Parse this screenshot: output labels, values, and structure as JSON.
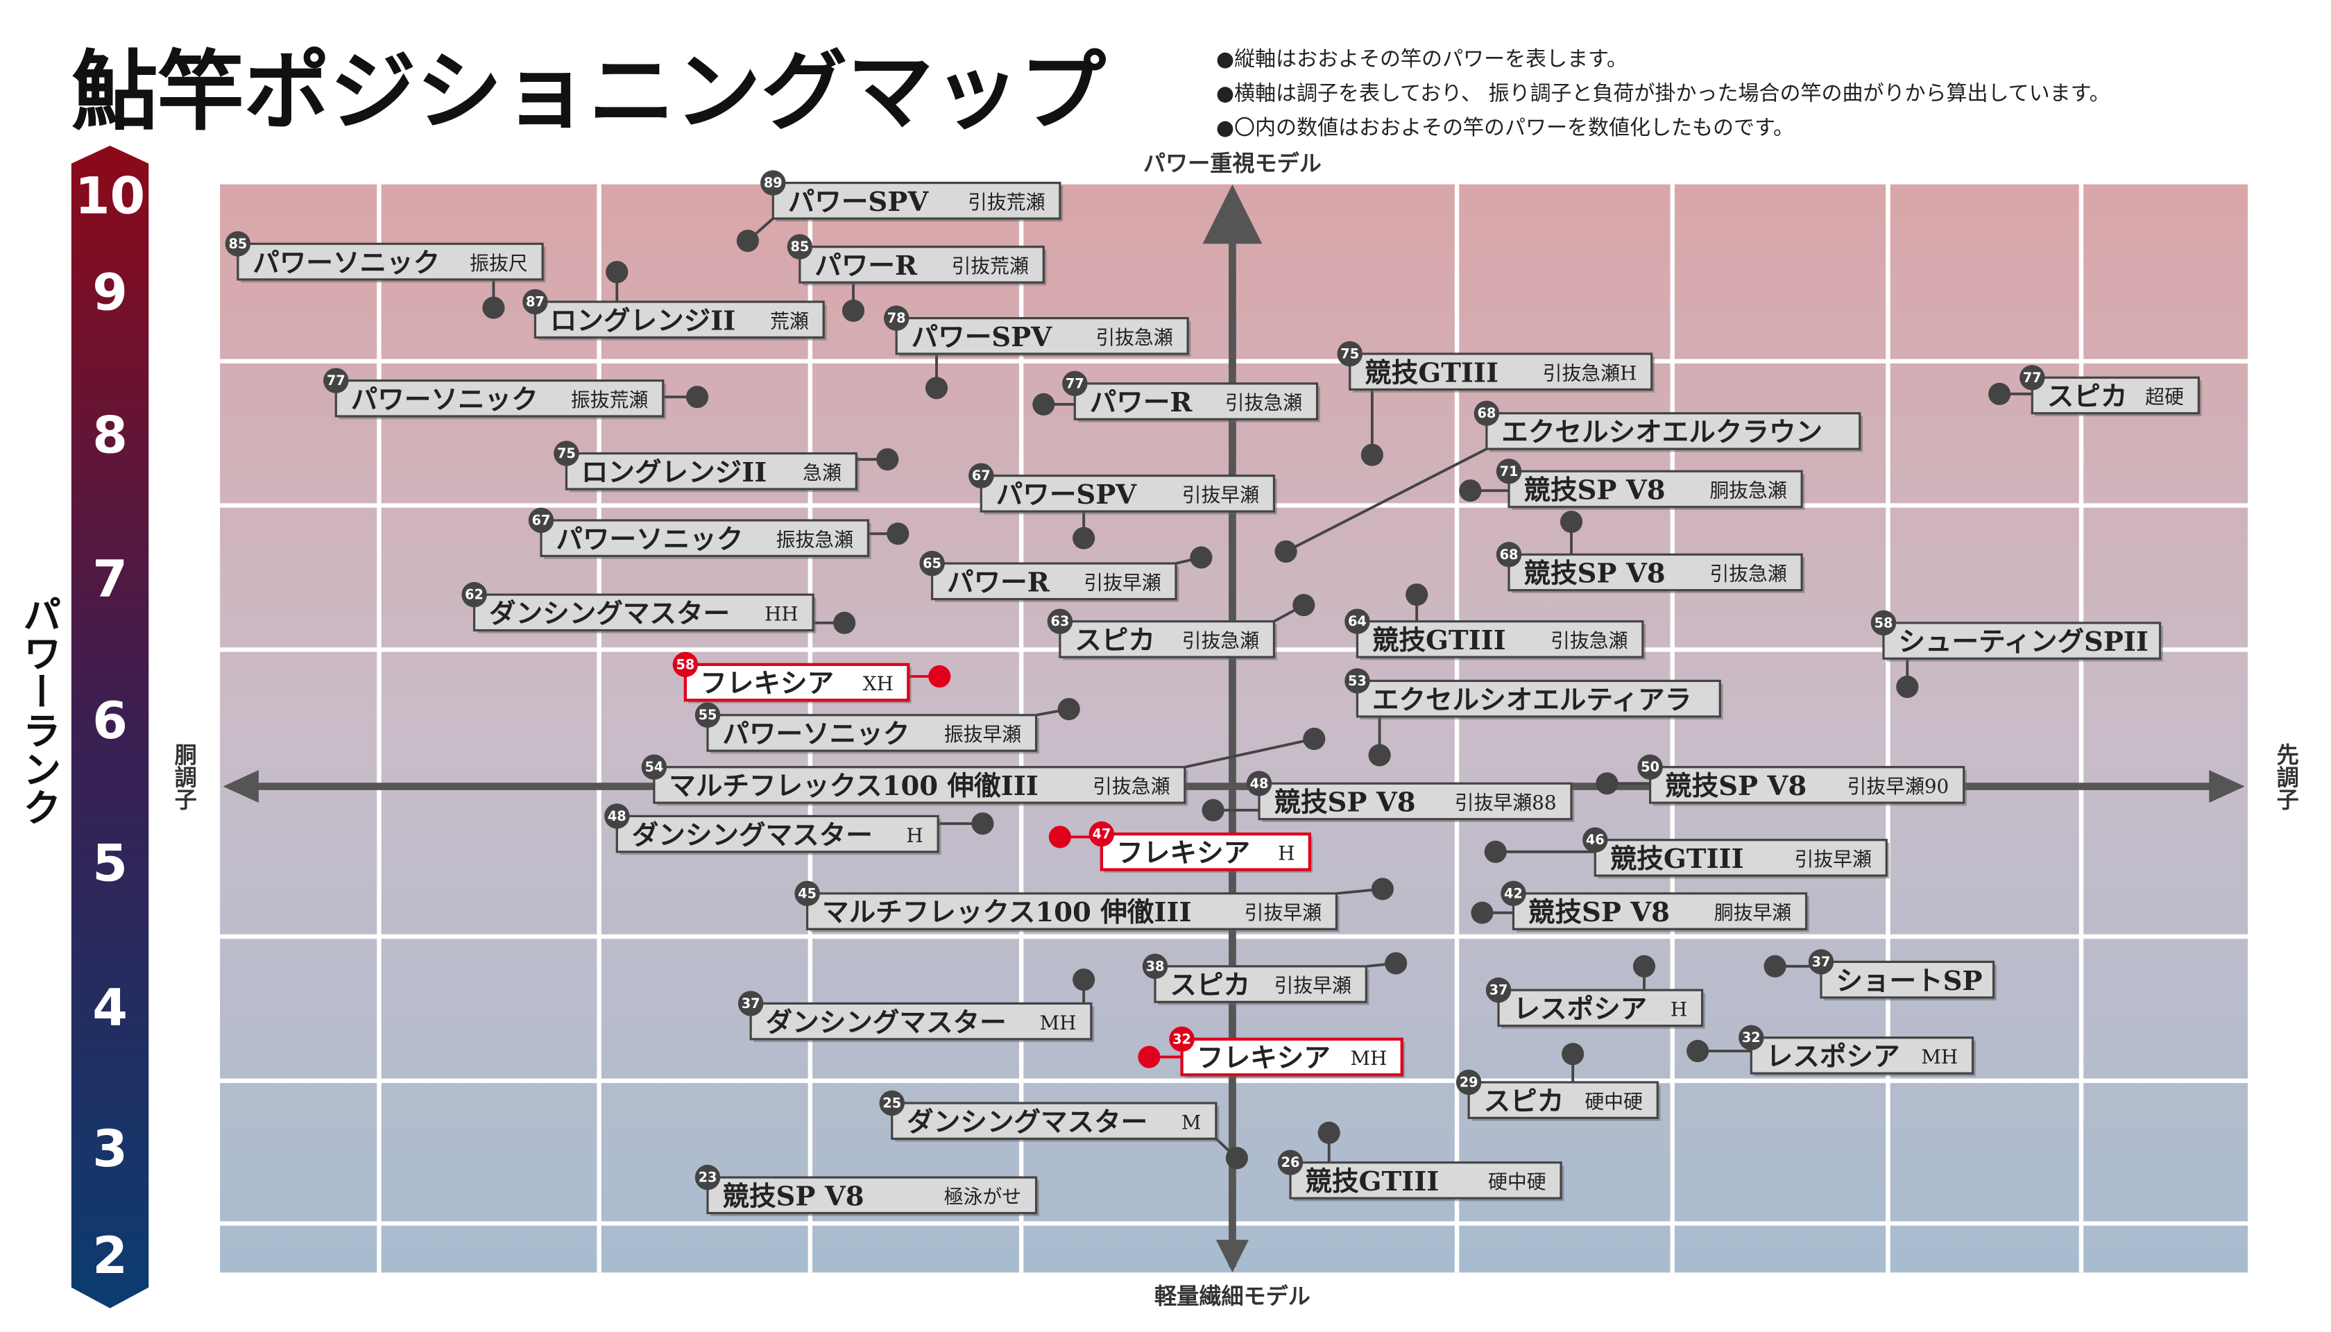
{
  "header": {
    "title": "鮎竿ポジショニングマップ",
    "notes": [
      "●縦軸はおおよその竿のパワーを表します。",
      "●横軸は調子を表しており、 振り調子と負荷が掛かった場合の竿の曲がりから算出しています。",
      "●〇内の数値はおおよその竿のパワーを数値化したものです。"
    ]
  },
  "axes": {
    "top": "パワー重視モデル",
    "bottom": "軽量繊細モデル",
    "left": "胴調子",
    "right": "先調子",
    "rank_title": "パワーランク"
  },
  "ranks": [
    "10",
    "9",
    "8",
    "7",
    "6",
    "5",
    "4",
    "3",
    "2"
  ],
  "items": [
    {
      "rank": 89,
      "name": "パワーSPV",
      "sub": "引抜荒瀬"
    },
    {
      "rank": 85,
      "name": "パワーソニック",
      "sub": "振抜尺"
    },
    {
      "rank": 85,
      "name": "パワーR",
      "sub": "引抜荒瀬"
    },
    {
      "rank": 87,
      "name": "ロングレンジII",
      "sub": "荒瀬"
    },
    {
      "rank": 78,
      "name": "パワーSPV",
      "sub": "引抜急瀬"
    },
    {
      "rank": 75,
      "name": "競技GTIII",
      "sub": "引抜急瀬H"
    },
    {
      "rank": 77,
      "name": "パワーソニック",
      "sub": "振抜荒瀬"
    },
    {
      "rank": 77,
      "name": "パワーR",
      "sub": "引抜急瀬"
    },
    {
      "rank": 77,
      "name": "スピカ",
      "sub": "超硬"
    },
    {
      "rank": 68,
      "name": "エクセルシオエルクラウン"
    },
    {
      "rank": 75,
      "name": "ロングレンジII",
      "sub": "急瀬"
    },
    {
      "rank": 71,
      "name": "競技SP V8",
      "sub": "胴抜急瀬"
    },
    {
      "rank": 67,
      "name": "パワーSPV",
      "sub": "引抜早瀬"
    },
    {
      "rank": 67,
      "name": "パワーソニック",
      "sub": "振抜急瀬"
    },
    {
      "rank": 68,
      "name": "競技SP V8",
      "sub": "引抜急瀬"
    },
    {
      "rank": 65,
      "name": "パワーR",
      "sub": "引抜早瀬"
    },
    {
      "rank": 62,
      "name": "ダンシングマスター",
      "sub": "HH"
    },
    {
      "rank": 63,
      "name": "スピカ",
      "sub": "引抜急瀬"
    },
    {
      "rank": 64,
      "name": "競技GTIII",
      "sub": "引抜急瀬"
    },
    {
      "rank": 58,
      "name": "シューティングSPII"
    },
    {
      "rank": 58,
      "name": "フレキシア",
      "sub": "XH"
    },
    {
      "rank": 53,
      "name": "エクセルシオエルティアラ"
    },
    {
      "rank": 55,
      "name": "パワーソニック",
      "sub": "振抜早瀬"
    },
    {
      "rank": 54,
      "name": "マルチフレックス100 伸徹III",
      "sub": "引抜急瀬"
    },
    {
      "rank": 48,
      "name": "競技SP V8",
      "sub": "引抜早瀬88"
    },
    {
      "rank": 50,
      "name": "競技SP V8",
      "sub": "引抜早瀬90"
    },
    {
      "rank": 48,
      "name": "ダンシングマスター",
      "sub": "H"
    },
    {
      "rank": 47,
      "name": "フレキシア",
      "sub": "H"
    },
    {
      "rank": 46,
      "name": "競技GTIII",
      "sub": "引抜早瀬"
    },
    {
      "rank": 45,
      "name": "マルチフレックス100 伸徹III",
      "sub": "引抜早瀬"
    },
    {
      "rank": 42,
      "name": "競技SP V8",
      "sub": "胴抜早瀬"
    },
    {
      "rank": 38,
      "name": "スピカ",
      "sub": "引抜早瀬"
    },
    {
      "rank": 37,
      "name": "ショートSP"
    },
    {
      "rank": 37,
      "name": "ダンシングマスター",
      "sub": "MH"
    },
    {
      "rank": 37,
      "name": "レスポシア",
      "sub": "H"
    },
    {
      "rank": 32,
      "name": "フレキシア",
      "sub": "MH"
    },
    {
      "rank": 32,
      "name": "レスポシア",
      "sub": "MH"
    },
    {
      "rank": 29,
      "name": "スピカ",
      "sub": "硬中硬"
    },
    {
      "rank": 25,
      "name": "ダンシングマスター",
      "sub": "M"
    },
    {
      "rank": 26,
      "name": "競技GTIII",
      "sub": "硬中硬"
    },
    {
      "rank": 23,
      "name": "競技SP V8",
      "sub": "極泳がせ"
    }
  ]
}
